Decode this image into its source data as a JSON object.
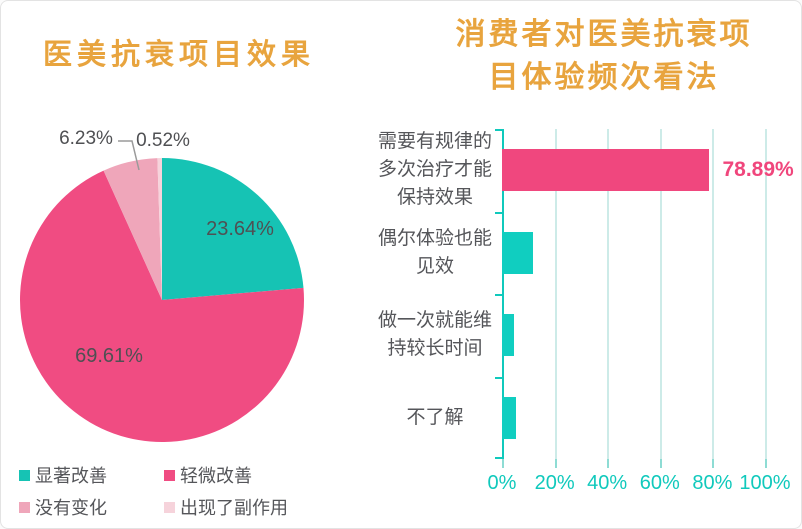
{
  "colors": {
    "title_gold": "#e8a43e",
    "pie_teal": "#16c3b4",
    "pie_magenta": "#f04c82",
    "pie_dusty_pink": "#efa6ba",
    "pie_light_pink": "#f6d3db",
    "bar_pink": "#f0477e",
    "bar_teal": "#10cec0",
    "axis_teal": "#10c9bc",
    "gridline_teal": "#cdebe8",
    "text_dark": "#55565a",
    "leader_line_gray": "#9a9a9a"
  },
  "chart_data": [
    {
      "type": "pie",
      "title": "医美抗衰项目效果",
      "labels": [
        "显著改善",
        "轻微改善",
        "没有变化",
        "出现了副作用"
      ],
      "values": [
        23.64,
        69.61,
        6.23,
        0.52
      ],
      "value_labels": [
        "23.64%",
        "69.61%",
        "6.23%",
        "0.52%"
      ],
      "colors": [
        "#16c3b4",
        "#f04c82",
        "#efa6ba",
        "#f6d3db"
      ],
      "start_angle": "top",
      "direction": "clockwise",
      "legend_position": "bottom-left"
    },
    {
      "type": "bar",
      "orientation": "horizontal",
      "title": "消费者对医美抗衰项目体验频次看法",
      "title_lines": [
        "消费者对医美抗衰项",
        "目体验频次看法"
      ],
      "categories": [
        "需要有规律的多次治疗才能保持效果",
        "偶尔体验也能见效",
        "做一次就能维持较长时间",
        "不了解"
      ],
      "category_lines": [
        [
          "需要有规律的",
          "多次治疗才能",
          "保持效果"
        ],
        [
          "偶尔体验也能",
          "见效"
        ],
        [
          "做一次就能维",
          "持较长时间"
        ],
        [
          "不了解"
        ]
      ],
      "values": [
        78.89,
        11.8,
        4.7,
        5.3
      ],
      "data_labels": [
        "78.89%",
        "",
        "",
        ""
      ],
      "bar_colors": [
        "#f0477e",
        "#10cec0",
        "#10cec0",
        "#10cec0"
      ],
      "xlim": [
        0,
        100
      ],
      "x_ticks": [
        "0%",
        "20%",
        "40%",
        "60%",
        "80%",
        "100%"
      ],
      "grid": true
    }
  ]
}
